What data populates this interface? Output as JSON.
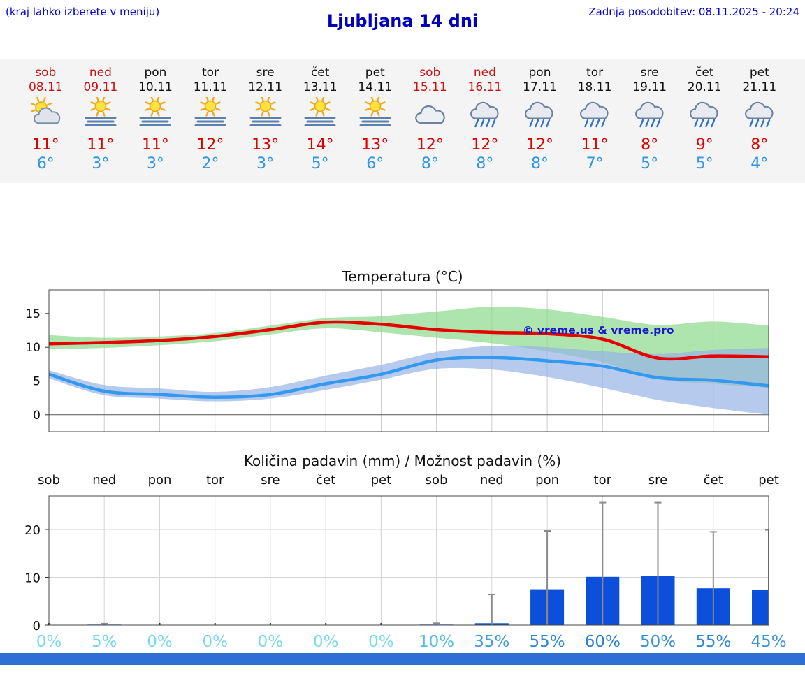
{
  "header": {
    "menu_hint": "(kraj lahko izberete v meniju)",
    "title": "Ljubljana 14 dni",
    "last_update": "Zadnja posodobitev: 08.11.2025 - 20:24"
  },
  "colors": {
    "link_blue": "#0000dd",
    "title_blue": "#0000bb",
    "weekend_red": "#cc1111",
    "high_red": "#dd0000",
    "low_blue": "#2f95e8",
    "strip_bg": "#f4f4f4",
    "footer_blue": "#2e6fd6"
  },
  "forecast": {
    "days": [
      {
        "name": "sob",
        "date": "08.11",
        "weekend": true,
        "icon": "sun-cloud",
        "high": "11°",
        "low": "6°"
      },
      {
        "name": "ned",
        "date": "09.11",
        "weekend": true,
        "icon": "sun-fog",
        "high": "11°",
        "low": "3°"
      },
      {
        "name": "pon",
        "date": "10.11",
        "weekend": false,
        "icon": "sun-fog",
        "high": "11°",
        "low": "3°"
      },
      {
        "name": "tor",
        "date": "11.11",
        "weekend": false,
        "icon": "sun-fog",
        "high": "12°",
        "low": "2°"
      },
      {
        "name": "sre",
        "date": "12.11",
        "weekend": false,
        "icon": "sun-fog",
        "high": "13°",
        "low": "3°"
      },
      {
        "name": "čet",
        "date": "13.11",
        "weekend": false,
        "icon": "sun-fog",
        "high": "14°",
        "low": "5°"
      },
      {
        "name": "pet",
        "date": "14.11",
        "weekend": false,
        "icon": "sun-fog",
        "high": "13°",
        "low": "6°"
      },
      {
        "name": "sob",
        "date": "15.11",
        "weekend": true,
        "icon": "cloudy",
        "high": "12°",
        "low": "8°"
      },
      {
        "name": "ned",
        "date": "16.11",
        "weekend": true,
        "icon": "rain",
        "high": "12°",
        "low": "8°"
      },
      {
        "name": "pon",
        "date": "17.11",
        "weekend": false,
        "icon": "rain",
        "high": "12°",
        "low": "8°"
      },
      {
        "name": "tor",
        "date": "18.11",
        "weekend": false,
        "icon": "rain",
        "high": "11°",
        "low": "7°"
      },
      {
        "name": "sre",
        "date": "19.11",
        "weekend": false,
        "icon": "rain",
        "high": "8°",
        "low": "5°"
      },
      {
        "name": "čet",
        "date": "20.11",
        "weekend": false,
        "icon": "rain",
        "high": "9°",
        "low": "5°"
      },
      {
        "name": "pet",
        "date": "21.11",
        "weekend": false,
        "icon": "rain",
        "high": "8°",
        "low": "4°"
      }
    ]
  },
  "chart_data": [
    {
      "type": "line",
      "title": "Temperatura (°C)",
      "x": [
        "sob",
        "ned",
        "pon",
        "tor",
        "sre",
        "čet",
        "pet",
        "sob",
        "ned",
        "pon",
        "tor",
        "sre",
        "čet",
        "pet"
      ],
      "ylim": [
        -2.5,
        18.5
      ],
      "yticks": [
        0,
        5,
        10,
        15
      ],
      "annotation": "© vreme.us & vreme.pro",
      "series": [
        {
          "name": "max-temp",
          "color": "#e60000",
          "values": [
            10.5,
            10.7,
            11.0,
            11.6,
            12.6,
            13.7,
            13.4,
            12.6,
            12.2,
            12.0,
            11.2,
            8.4,
            8.7,
            8.6
          ],
          "band_upper": [
            11.8,
            11.4,
            11.6,
            12.1,
            13.2,
            14.3,
            14.6,
            15.3,
            16.0,
            15.6,
            14.5,
            13.3,
            13.8,
            13.2
          ],
          "band_lower": [
            9.7,
            9.9,
            10.3,
            10.9,
            11.9,
            12.8,
            12.2,
            11.4,
            10.6,
            9.4,
            7.8,
            5.3,
            4.6,
            4.0
          ],
          "band_color": "#8cd88c"
        },
        {
          "name": "min-temp",
          "color": "#3399ee",
          "values": [
            6.0,
            3.5,
            3.0,
            2.6,
            3.0,
            4.6,
            6.0,
            8.1,
            8.5,
            8.0,
            7.2,
            5.5,
            5.1,
            4.3
          ],
          "band_upper": [
            6.6,
            4.4,
            3.9,
            3.4,
            4.1,
            5.8,
            7.4,
            9.3,
            10.2,
            10.0,
            9.4,
            9.0,
            9.6,
            9.9
          ],
          "band_lower": [
            5.4,
            2.9,
            2.4,
            2.0,
            2.4,
            3.7,
            5.2,
            6.8,
            6.7,
            5.6,
            4.0,
            2.2,
            1.0,
            0.0
          ],
          "band_color": "#96b4e6"
        }
      ]
    },
    {
      "type": "bar",
      "title": "Količina padavin (mm) / Možnost padavin (%)",
      "categories": [
        "sob",
        "ned",
        "pon",
        "tor",
        "sre",
        "čet",
        "pet",
        "sob",
        "ned",
        "pon",
        "tor",
        "sre",
        "čet",
        "pet"
      ],
      "values_mm": [
        0,
        0.1,
        0,
        0,
        0,
        0,
        0,
        0.1,
        0.4,
        7.5,
        10.1,
        10.3,
        7.7,
        7.4
      ],
      "whisker_max_mm": [
        0,
        0.3,
        0,
        0,
        0,
        0,
        0,
        0.4,
        6.4,
        19.7,
        25.6,
        25.6,
        19.5,
        19.9
      ],
      "probability_labels": [
        "0%",
        "5%",
        "0%",
        "0%",
        "0%",
        "0%",
        "0%",
        "10%",
        "35%",
        "55%",
        "60%",
        "50%",
        "55%",
        "45%"
      ],
      "probability_colors": [
        "#7bdbe8",
        "#74d6e6",
        "#7bdbe8",
        "#7bdbe8",
        "#7bdbe8",
        "#7bdbe8",
        "#7bdbe8",
        "#55bede",
        "#3f9fd8",
        "#2f86d2",
        "#2b80d0",
        "#3390d4",
        "#2f86d2",
        "#3795d5"
      ],
      "ylim": [
        0,
        27
      ],
      "yticks": [
        0,
        10,
        20
      ],
      "bar_color": "#0b4fdb",
      "whisker_color": "#8a8a8a"
    }
  ]
}
